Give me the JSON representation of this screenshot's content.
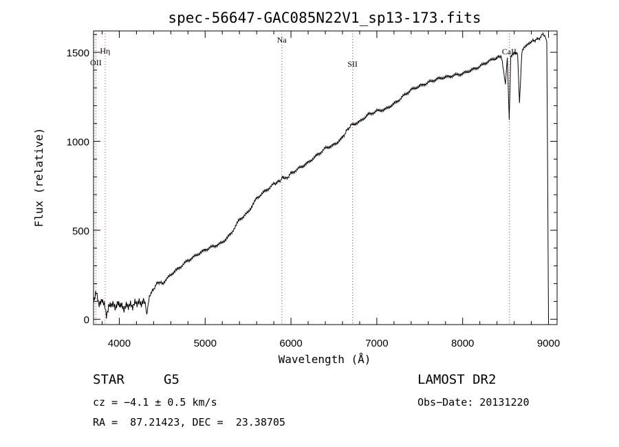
{
  "chart_data": {
    "type": "line",
    "title": "spec-56647-GAC085N22V1_sp13-173.fits",
    "xlabel": "Wavelength (Å)",
    "ylabel": "Flux (relative)",
    "xlim": [
      3700,
      9100
    ],
    "ylim": [
      -30,
      1620
    ],
    "x_ticks": [
      4000,
      5000,
      6000,
      7000,
      8000,
      9000
    ],
    "y_ticks": [
      0,
      500,
      1000,
      1500
    ],
    "grid": false,
    "series": [
      {
        "x": [
          3700,
          3730,
          3760,
          3800,
          3850,
          3900,
          3950,
          4000,
          4050,
          4100,
          4150,
          4200,
          4250,
          4300,
          4320,
          4350,
          4400,
          4450,
          4500,
          4600,
          4700,
          4800,
          4900,
          5000,
          5100,
          5200,
          5300,
          5400,
          5500,
          5600,
          5700,
          5800,
          5880,
          5900,
          5950,
          6000,
          6100,
          6200,
          6300,
          6400,
          6500,
          6560,
          6600,
          6650,
          6700,
          6800,
          6900,
          7000,
          7100,
          7200,
          7300,
          7400,
          7500,
          7600,
          7700,
          7800,
          7900,
          8000,
          8100,
          8200,
          8300,
          8400,
          8450,
          8498,
          8520,
          8542,
          8560,
          8600,
          8640,
          8662,
          8690,
          8720,
          8760,
          8800,
          8850,
          8900,
          8930,
          8960,
          8980,
          9000
        ],
        "y": [
          110,
          150,
          80,
          120,
          30,
          90,
          70,
          90,
          60,
          80,
          75,
          95,
          90,
          100,
          20,
          130,
          170,
          210,
          200,
          250,
          290,
          330,
          360,
          390,
          410,
          430,
          480,
          560,
          600,
          680,
          720,
          760,
          780,
          800,
          790,
          820,
          850,
          880,
          920,
          960,
          980,
          1000,
          1020,
          1060,
          1090,
          1110,
          1150,
          1170,
          1180,
          1210,
          1250,
          1290,
          1310,
          1330,
          1350,
          1360,
          1370,
          1380,
          1400,
          1420,
          1450,
          1470,
          1480,
          1320,
          1470,
          1120,
          1480,
          1500,
          1490,
          1210,
          1500,
          1530,
          1550,
          1560,
          1570,
          1580,
          1600,
          1590,
          1560,
          0
        ]
      }
    ],
    "annotations": [
      {
        "label": "OII",
        "x": 3727
      },
      {
        "label": "Hη",
        "x": 3835
      },
      {
        "label": "Na",
        "x": 5893
      },
      {
        "label": "SII",
        "x": 6717
      },
      {
        "label": "CaII",
        "x": 8542
      }
    ]
  },
  "info": {
    "class": "STAR",
    "subclass": "G5",
    "survey": "LAMOST DR2",
    "cz": "cz = −4.1 ± 0.5 km/s",
    "obs_date": "Obs−Date: 20131220",
    "radec": "RA =  87.21423, DEC =  23.38705"
  }
}
